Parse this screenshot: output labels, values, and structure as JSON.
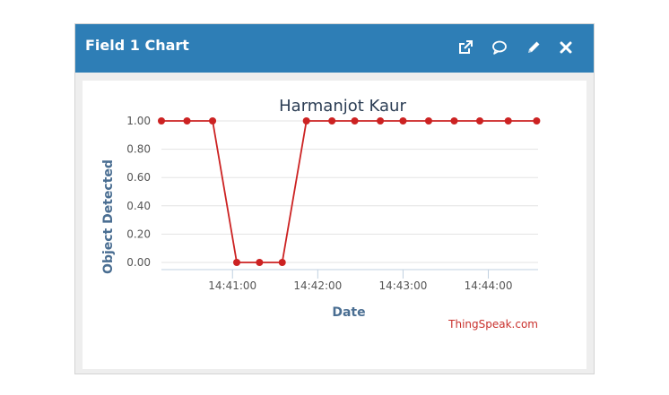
{
  "widget": {
    "title": "Field 1 Chart",
    "header_color": "#2e7eb6",
    "buttons": [
      {
        "name": "open-external",
        "icon": "external-link-icon"
      },
      {
        "name": "comment",
        "icon": "speech-bubble-icon"
      },
      {
        "name": "edit",
        "icon": "pencil-icon"
      },
      {
        "name": "close",
        "icon": "close-icon"
      }
    ]
  },
  "credit": "ThingSpeak.com",
  "chart_data": {
    "type": "line",
    "title": "Harmanjot Kaur",
    "xlabel": "Date",
    "ylabel": "Object Detected",
    "line_color": "#cc2222",
    "ylim": [
      0,
      1
    ],
    "xlim": [
      "14:40:10",
      "14:44:35"
    ],
    "yticks": [
      "0.00",
      "0.20",
      "0.40",
      "0.60",
      "0.80",
      "1.00"
    ],
    "xticks": [
      "14:41:00",
      "14:42:00",
      "14:43:00",
      "14:44:00"
    ],
    "grid": true,
    "legend": false,
    "series": [
      {
        "x": [
          "14:40:10",
          "14:40:28",
          "14:40:46",
          "14:41:03",
          "14:41:19",
          "14:41:35",
          "14:41:52",
          "14:42:10",
          "14:42:26",
          "14:42:44",
          "14:43:00",
          "14:43:18",
          "14:43:36",
          "14:43:54",
          "14:44:14",
          "14:44:34"
        ],
        "values": [
          1,
          1,
          1,
          0,
          0,
          0,
          1,
          1,
          1,
          1,
          1,
          1,
          1,
          1,
          1,
          1
        ]
      }
    ]
  }
}
